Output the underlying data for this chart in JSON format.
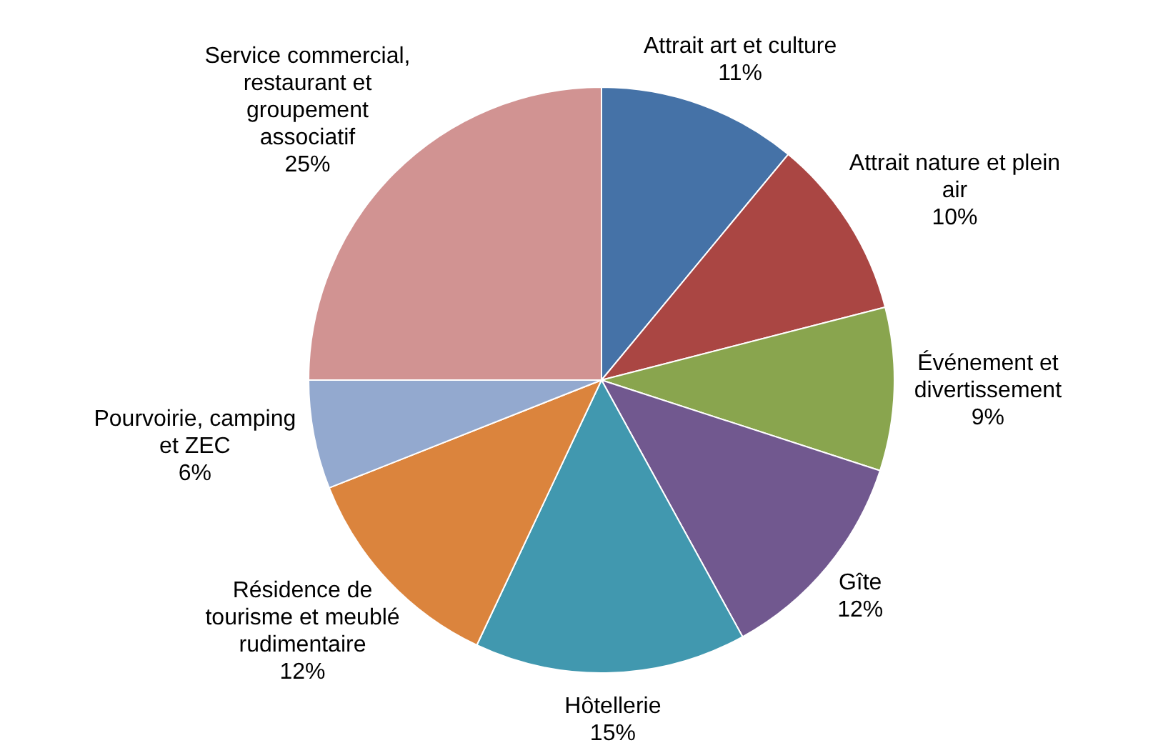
{
  "chart_data": {
    "type": "pie",
    "categories": [
      "Attrait art et culture",
      "Attrait nature et plein air",
      "Événement et divertissement",
      "Gîte",
      "Hôtellerie",
      "Résidence de tourisme et meublé rudimentaire",
      "Pourvoirie, camping et ZEC",
      "Service commercial, restaurant et groupement associatif"
    ],
    "values": [
      11,
      10,
      9,
      12,
      15,
      12,
      6,
      25
    ],
    "colors": [
      "#4572a7",
      "#aa4643",
      "#89a54e",
      "#71588f",
      "#4198af",
      "#db843d",
      "#93a9cf",
      "#d19392"
    ],
    "value_labels": [
      "11%",
      "10%",
      "9%",
      "12%",
      "15%",
      "12%",
      "6%",
      "25%"
    ],
    "legend": false
  }
}
